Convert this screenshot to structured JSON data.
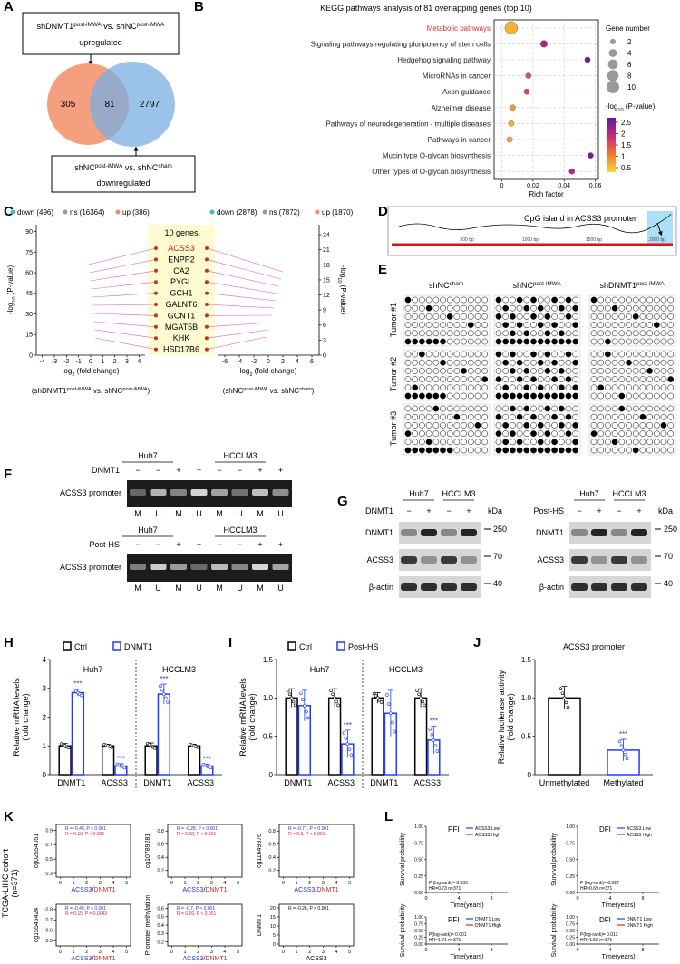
{
  "panel_labels": [
    "A",
    "B",
    "C",
    "D",
    "E",
    "F",
    "G",
    "H",
    "I",
    "J",
    "K",
    "L"
  ],
  "venn": {
    "top_label": [
      [
        "shDNMT1",
        {
          "sup": "post-iMWA"
        },
        " vs. shNC",
        {
          "sup": "post-iMWA"
        }
      ],
      "upregulated"
    ],
    "counts": {
      "left": 305,
      "overlap": 81,
      "right": 2797
    },
    "bottom_label": [
      [
        "shNC",
        {
          "sup": "post-iMWA"
        },
        " vs. shNC",
        {
          "sup": "sham"
        }
      ],
      "downregulated"
    ]
  },
  "chart_data": [
    {
      "type": "scatter",
      "title": "KEGG pathways analysis of 81 overlapping genes (top 10)",
      "categories": [
        "Metabolic pathways",
        "Signaling pathways regulating pluripotency of stem cells",
        "Hedgehog signaling pathway",
        "MicroRNAs in cancer",
        "Axon guidance",
        "Alzheimer disease",
        "Pathways of neurodegeneration - multiple diseases",
        "Pathways in cancer",
        "Mucin type O-glycan biosynthesis",
        "Other types of O-glycan biosynthesis"
      ],
      "x": [
        0.006,
        0.027,
        0.055,
        0.017,
        0.016,
        0.007,
        0.006,
        0.005,
        0.057,
        0.045
      ],
      "sizes": [
        10,
        3,
        2,
        2,
        2,
        2,
        2,
        2,
        2,
        2
      ],
      "color_values": [
        0.6,
        2.1,
        2.6,
        1.5,
        1.6,
        0.8,
        0.6,
        0.7,
        2.5,
        2.0
      ],
      "highlight_index": 0,
      "highlight_color": "#e02b2b",
      "x_label": "Rich factor",
      "xlim": [
        -0.005,
        0.062
      ],
      "xticks": [
        0,
        0.02,
        0.04,
        0.06
      ],
      "grid": true,
      "size_legend_title": "Gene number",
      "size_legend": [
        2,
        4,
        6,
        8,
        10
      ],
      "color_legend_title": [
        "-log",
        {
          "sub": "10"
        },
        " (P-value)"
      ],
      "color_ticks": [
        2.5,
        2,
        1.5,
        1,
        0.5
      ],
      "color_lim": [
        0.3,
        2.7
      ],
      "colorscale": [
        "#f9d33c",
        "#ee7a2b",
        "#c42a7a",
        "#5b1a9c"
      ]
    },
    {
      "type": "bar",
      "groups": [
        "Huh7",
        "HCCLM3"
      ],
      "categories": [
        "DNMT1",
        "ACSS3",
        "DNMT1",
        "ACSS3"
      ],
      "series": [
        {
          "name": "Ctrl",
          "color": "#000000",
          "values": [
            1,
            1,
            1,
            1
          ],
          "errors": [
            0.08,
            0.06,
            0.1,
            0.06
          ],
          "significance": [
            null,
            null,
            null,
            null
          ]
        },
        {
          "name": "DNMT1",
          "color": "#1f3cff",
          "values": [
            2.85,
            0.3,
            2.8,
            0.3
          ],
          "errors": [
            0.12,
            0.08,
            0.35,
            0.07
          ],
          "significance": [
            "***",
            "***",
            "***",
            "***"
          ]
        }
      ],
      "y_label": [
        "Relative mRNA levels",
        "(fold change)"
      ],
      "ylim": [
        0,
        4
      ],
      "yticks": [
        0,
        1,
        2,
        3,
        4
      ]
    },
    {
      "type": "bar",
      "groups": [
        "Huh7",
        "HCCLM3"
      ],
      "categories": [
        "DNMT1",
        "ACSS3",
        "DNMT1",
        "ACSS3"
      ],
      "series": [
        {
          "name": "Ctrl",
          "color": "#000000",
          "values": [
            1,
            1,
            1,
            1
          ],
          "errors": [
            0.12,
            0.12,
            0.07,
            0.12
          ],
          "significance": [
            null,
            null,
            null,
            null
          ]
        },
        {
          "name": "Post-HS",
          "color": "#1f3cff",
          "values": [
            0.9,
            0.4,
            0.8,
            0.45
          ],
          "errors": [
            0.2,
            0.18,
            0.3,
            0.18
          ],
          "significance": [
            null,
            "***",
            null,
            "***"
          ]
        }
      ],
      "y_label": [
        "Relative mRNA levels",
        "(fold change)"
      ],
      "ylim": [
        0,
        1.5
      ],
      "yticks": [
        0,
        0.5,
        {
          "value": 1,
          "label": "1.0"
        },
        1.5
      ]
    },
    {
      "type": "bar",
      "title": "ACSS3 promoter",
      "categories": [
        "Unmethylated",
        "Methylated"
      ],
      "values": [
        1,
        0.32
      ],
      "errors": [
        0.15,
        0.14
      ],
      "colors": [
        "#000000",
        "#1f3cff"
      ],
      "significance": [
        null,
        "***"
      ],
      "y_label": [
        "Relative luciferase activity",
        "(fold change)"
      ],
      "ylim": [
        0,
        1.5
      ],
      "yticks": [
        0,
        0.5,
        {
          "value": 1,
          "label": "1.0"
        },
        1.5
      ]
    }
  ],
  "volcano": {
    "panels": [
      {
        "legend": [
          "down (496)",
          "ns (16364)",
          "up (386)"
        ],
        "xlim": [
          -4.5,
          4.5
        ],
        "xticks": [
          -4,
          -3,
          -2,
          -1,
          0,
          1,
          2,
          3,
          4
        ],
        "ylim": [
          0,
          95
        ],
        "yticks": [
          0,
          15,
          30,
          45,
          60,
          75,
          90
        ],
        "comparison": [
          "(shDNMT1",
          {
            "sup": "post-iMWA"
          },
          " vs. shNC",
          {
            "sup": "post-iMWA"
          },
          ")"
        ]
      },
      {
        "legend": [
          "down (2878)",
          "ns (7872)",
          "up (1870)"
        ],
        "xlim": [
          -7,
          7
        ],
        "xticks": [
          -6,
          -4,
          -2,
          0,
          2,
          4,
          6
        ],
        "ylim": [
          0,
          26
        ],
        "yticks": [
          0,
          3,
          6,
          9,
          12,
          15,
          18,
          21,
          24
        ],
        "comparison": [
          "(shNC",
          {
            "sup": "post-iMWA"
          },
          " vs. shNC",
          {
            "sup": "sham"
          },
          ")"
        ]
      }
    ],
    "legend_colors": [
      "#3bbfcf",
      "#999999",
      "#f08a70"
    ],
    "y_label": [
      "-log",
      {
        "sub": "10"
      },
      " (P-value)"
    ],
    "x_label": [
      "log",
      {
        "sub": "2"
      },
      " (fold change)"
    ],
    "gene_box_title": "10 genes",
    "genes": [
      "ACSS3",
      "ENPP2",
      "CA2",
      "PYGL",
      "GCH1",
      "GALNT6",
      "GCNT1",
      "MGAT5B",
      "KHK",
      "HSD17B6"
    ]
  },
  "cpg": {
    "title": "CpG island in ACSS3 promoter",
    "ticks": [
      "500 bp",
      "1000 bp",
      "1500 bp",
      "2000 bp"
    ]
  },
  "methylation": {
    "columns": [
      [
        "shNC",
        {
          "sup": "sham"
        }
      ],
      [
        "shNC",
        {
          "sup": "post-iMWA"
        }
      ],
      [
        "shDNMT1",
        {
          "sup": "post-iMWA"
        }
      ]
    ],
    "rows": [
      "Tumor #1",
      "Tumor #2",
      "Tumor #3"
    ]
  },
  "gel": {
    "cell_lines": [
      "Huh7",
      "HCCLM3"
    ],
    "treatments": [
      "DNMT1",
      "Post-HS"
    ],
    "signs": [
      "−",
      "−",
      "+",
      "+",
      "−",
      "−",
      "+",
      "+"
    ],
    "target": "ACSS3 promoter",
    "lanes": [
      "M",
      "U",
      "M",
      "U",
      "M",
      "U",
      "M",
      "U"
    ]
  },
  "western": {
    "cell_lines": [
      "Huh7",
      "HCCLM3"
    ],
    "treatments": [
      "DNMT1",
      "Post-HS"
    ],
    "signs": [
      "−",
      "+",
      "−",
      "+"
    ],
    "unit": "kDa",
    "proteins": [
      "DNMT1",
      "ACSS3",
      "β-actin"
    ],
    "markers": [
      250,
      70,
      40
    ]
  },
  "correlation": {
    "cohort": "TCGA-LIHC cohort",
    "n": "(n=371)",
    "xlim": [
      -0.3,
      5.3
    ],
    "xticks": [
      0,
      1,
      2,
      3,
      4,
      5
    ],
    "panels": [
      {
        "y_label": "cg02554051",
        "x_label": [
          "ACSS3",
          "/",
          "DNMT1"
        ],
        "stats": [
          "R = -0.45, P < 0.001",
          "R = 0.19, P < 0.001"
        ],
        "ylim": [
          0.25,
          0.98
        ],
        "yticks": [
          0.3,
          0.5,
          0.7,
          0.9
        ]
      },
      {
        "y_label": "cg10789281",
        "x_label": [
          "ACSS3",
          "/",
          "DNMT1"
        ],
        "stats": [
          "R = -0.28, P < 0.001",
          "R = 0.22, P < 0.001"
        ],
        "ylim": [
          0.1,
          0.9
        ],
        "yticks": [
          0.2,
          0.4,
          0.6,
          0.8
        ]
      },
      {
        "y_label": "cg11649376",
        "x_label": [
          "ACSS3",
          "/",
          "DNMT1"
        ],
        "stats": [
          "R = -0.77, P < 0.001",
          "R = 0.3, P < 0.001"
        ],
        "ylim": [
          0.1,
          0.9
        ],
        "yticks": [
          0.2,
          0.4,
          0.6,
          0.8
        ]
      },
      {
        "y_label": "cg15545424",
        "x_label": [
          "ACSS3",
          "/",
          "DNMT1"
        ],
        "stats": [
          "R = -0.49, P < 0.001",
          "R = 0.15, P = 0.0043"
        ],
        "ylim": [
          0.45,
          0.85
        ],
        "yticks": [
          0.5,
          0.6,
          0.7,
          0.8
        ]
      },
      {
        "y_label": "Promoter methylation",
        "x_label": [
          "ACSS3",
          "/",
          "DNMT1"
        ],
        "stats": [
          "R = -0.7, P < 0.001",
          "R = 0.26, P < 0.001"
        ],
        "ylim": [
          0.15,
          0.65
        ],
        "yticks": [
          0.2,
          0.3,
          0.4,
          0.5,
          0.6
        ]
      },
      {
        "y_label": "DNMT1",
        "x_label": [
          "ACSS3"
        ],
        "stats": [
          "R = -0.26, P < 0.001"
        ],
        "ylim": [
          -1,
          22
        ],
        "yticks": [
          0,
          5,
          10,
          15,
          20
        ]
      }
    ]
  },
  "survival": {
    "y_label": "Survival probability",
    "x_label": "Time(years)",
    "xlim": [
      0,
      10
    ],
    "xticks": [
      0,
      4,
      8
    ],
    "ylim": [
      0,
      1
    ],
    "yticks": [
      {
        "value": 0,
        "label": "0.00"
      },
      0.25,
      {
        "value": 0.5,
        "label": "0.50"
      },
      0.75,
      {
        "value": 1,
        "label": "1.00"
      }
    ],
    "legend_colors": [
      "#2a3cf0",
      "#e02020"
    ],
    "panels": [
      {
        "title": "PFI",
        "legend": [
          "ACSS3 Low",
          "ACSS3 High"
        ],
        "stats": [
          "P (log-rank)= 0.035",
          "HR=0.73   n=371"
        ]
      },
      {
        "title": "DFI",
        "legend": [
          "ACSS3 Low",
          "ACSS3 High"
        ],
        "stats": [
          "P (log-rank)= 0.027",
          "HR=0.69   n=371"
        ]
      },
      {
        "title": "PFI",
        "legend": [
          "DNMT1 Low",
          "DNMT1 High"
        ],
        "stats": [
          "P(log-rank)= 0.001",
          "HR=1.71   n=371"
        ]
      },
      {
        "title": "DFI",
        "legend": [
          "DNMT1 Low",
          "DNMT1 High"
        ],
        "stats": [
          "P(log-rank)= 0.013",
          "HR=1.58   n=371"
        ]
      }
    ]
  }
}
